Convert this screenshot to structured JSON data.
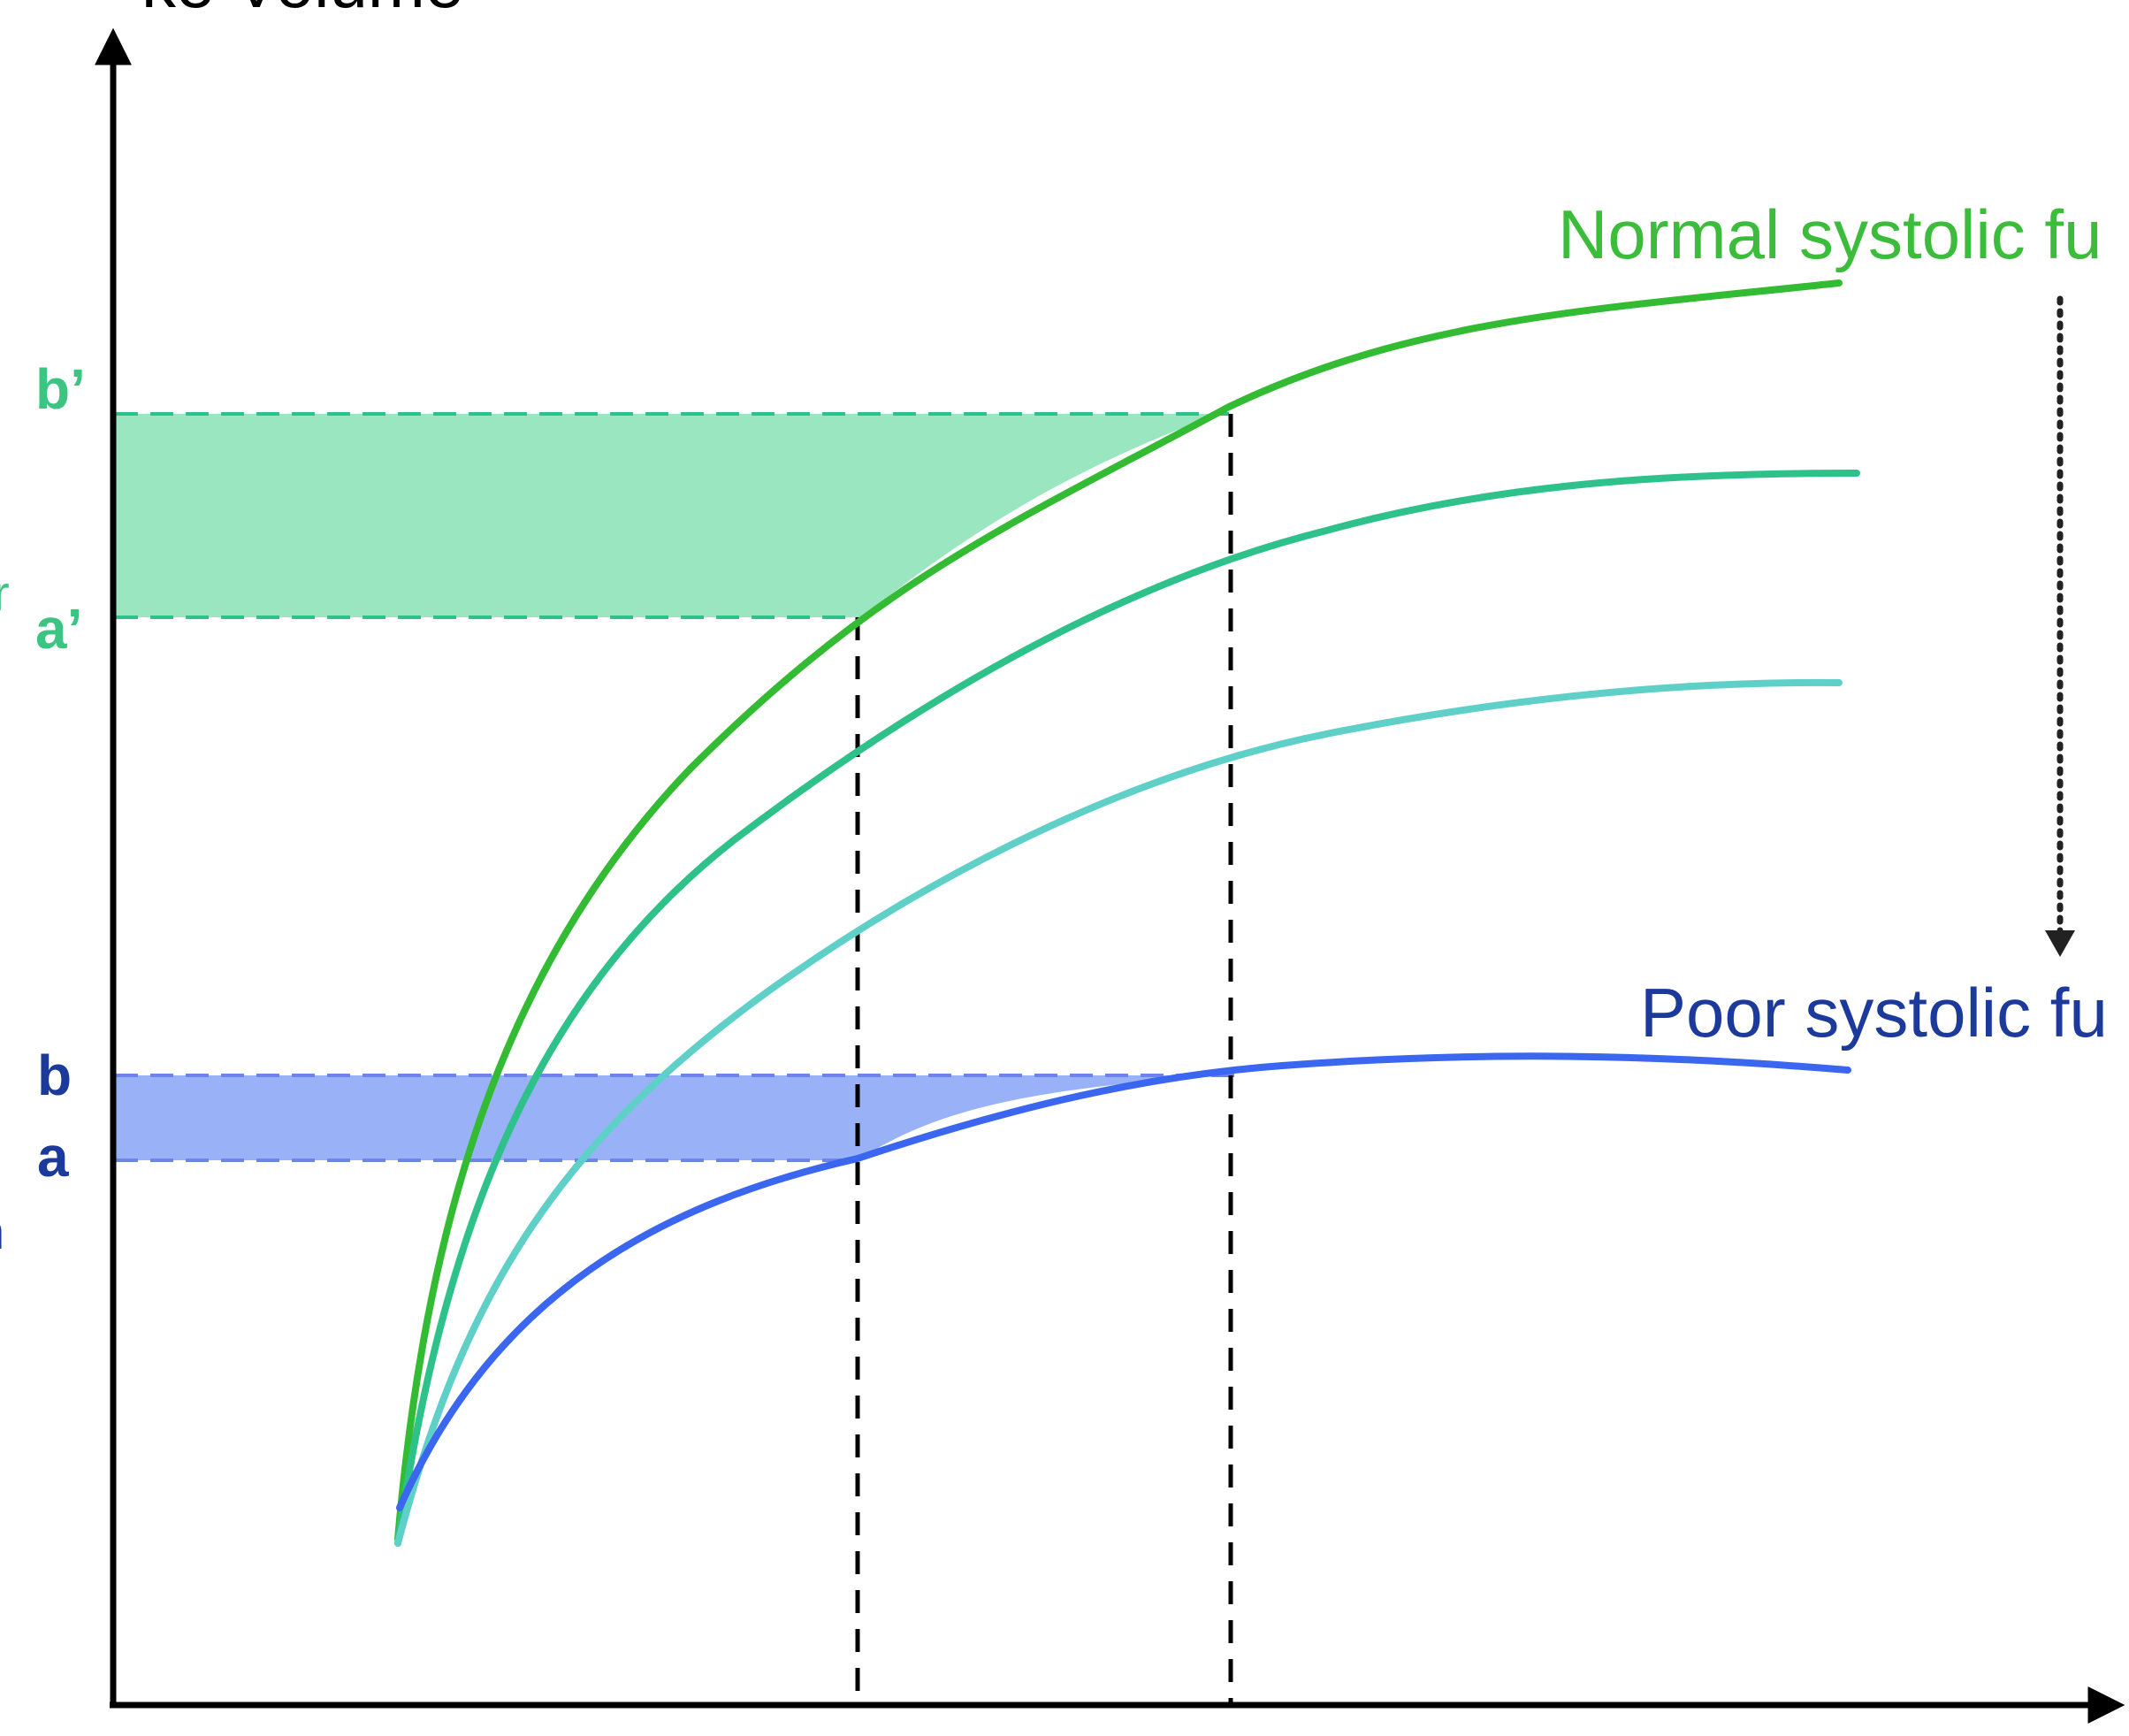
{
  "title_fragment": "ke Volume",
  "labels": {
    "normal_curve": "Normal systolic fu",
    "poor_curve": "Poor systolic fu",
    "b_prime": "b’",
    "a_prime": "a’",
    "b": "b",
    "a": "a",
    "left_edge_fragment_1": "r",
    "left_edge_fragment_2": "n"
  },
  "colors": {
    "normal": "#33bb33",
    "mid": "#2ec28a",
    "light": "#5fd0c8",
    "poor": "#3a66f0",
    "green_band": "#7fe0b0",
    "blue_band": "#7f9ff5",
    "label_green": "#3cc483",
    "label_blue": "#1c3a9c",
    "axis": "#000000",
    "dashed": "#000000",
    "dotted_arrow": "#222222"
  }
}
